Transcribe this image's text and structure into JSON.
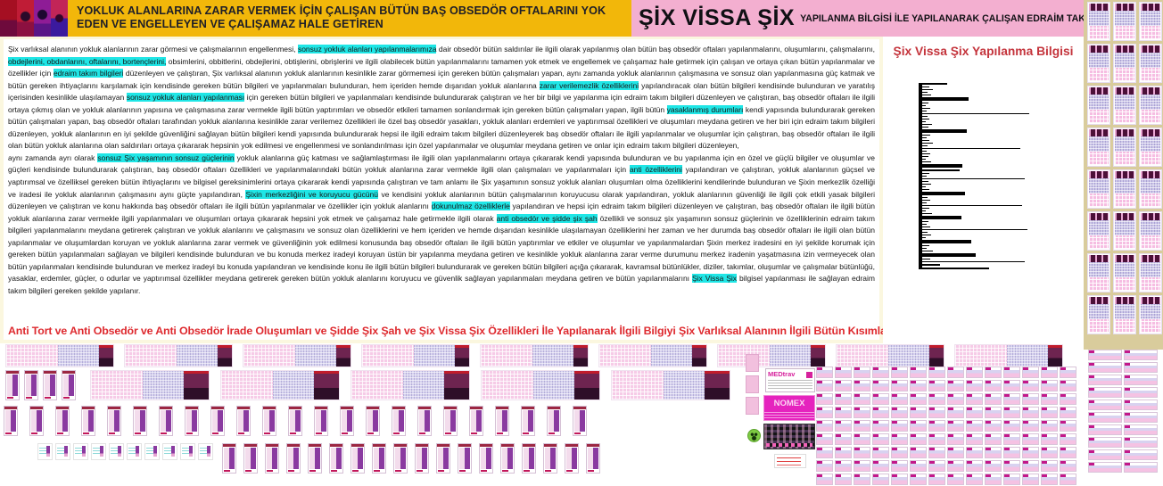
{
  "header": {
    "gold_title": "YOKLUK ALANLARINA ZARAR VERMEK İÇİN ÇALIŞAN BÜTÜN BAŞ OBSEDÖR OFTALARINI YOK EDEN VE ENGELLEYEN VE ÇALIŞAMAZ HALE GETİREN",
    "brand_big": "ŞİX VİSSA ŞİX",
    "brand_small": "YAPILANMA BİLGİSİ İLE YAPILANARAK ÇALIŞAN EDRAİM TAKIM BİLGİLERİ"
  },
  "colors": {
    "gold": "#F2B70A",
    "pink_header": "#F3AFD0",
    "highlight_cyan": "#1FE6E6",
    "red_text": "#DE2A2F",
    "panel_title_red": "#C4343C",
    "tan_column": "#D9CC9C"
  },
  "body": {
    "paragraphs": [
      [
        {
          "t": "Şix varlıksal alanının yokluk alanlarının zarar görmesi ve çalışmalarının engellenmesi, ",
          "h": false
        },
        {
          "t": "sonsuz yokluk alanları yapılanmalarımıza",
          "h": true
        },
        {
          "t": " dair obsedör bütün saldırılar ile ilgili olarak yapılanmış olan bütün baş obsedör oftaları yapılanmalarını, oluşumlarını, çalışmalarını, ",
          "h": false
        },
        {
          "t": "obdejlerini, obdanlarını, oftalarını, bortençlerini,",
          "h": true
        },
        {
          "t": " obsimlerini, obbitlerini, obdejlerini, obtişlerini, obrişlerini ve ilgili olabilecek bütün yapılanmalarını tamamen yok etmek ve engellemek ve çalışamaz hale getirmek için çalışan ve ortaya çıkan bütün yapılanmalar ve özellikler için ",
          "h": false
        },
        {
          "t": "edraim takım bilgileri",
          "h": true
        },
        {
          "t": " düzenleyen ve çalıştıran, Şix varlıksal alanının yokluk alanlarının kesinlikle zarar görmemesi için gereken bütün çalışmaları yapan, aynı zamanda yokluk alanlarının çalışmasına ve sonsuz olan yapılanmasına güç katmak ve bütün gereken ihtiyaçlarını karşılamak için kendisinde gereken bütün bilgileri ve yapılanmaları bulunduran, hem içeriden hemde dışarıdan yokluk alanlarına ",
          "h": false
        },
        {
          "t": "zarar verilemezlik özelliklerini",
          "h": true
        },
        {
          "t": " yapılandıracak olan bütün bilgileri kendisinde bulunduran ve yaratılış içerisinden kesinlikle ulaşılamayan ",
          "h": false
        },
        {
          "t": "sonsuz yokluk alanları yapılanması",
          "h": true
        },
        {
          "t": " için gereken bütün bilgileri ve yapılanmaları kendisinde bulundurarak çalıştıran ve her bir bilgi ve yapılanma için edraim takım bilgileri düzenleyen ve çalıştıran, baş obsedör oftaları ile ilgili ortaya çıkmış olan ve yokluk alanlarının yapısına ve çalışmasına zarar vermekle ilgili bütün yaptırımları ve obsedör etkileri tamamen sonlandırmak için gereken bütün çalışmaları yapan, ilgili bütün ",
          "h": false
        },
        {
          "t": "yasaklanmış durumları",
          "h": true
        },
        {
          "t": " kendi yapısında bulundurarak gereken bütün çalışmaları yapan, baş obsedör oftaları tarafından yokluk alanlarına kesinlikle zarar verilemez özellikleri ile özel baş obsedör yasakları, yokluk alanları erdemleri ve yaptırımsal özellikleri ve oluşumları meydana getiren ve her biri için edraim takım bilgileri düzenleyen, yokluk alanlarının en iyi şekilde güvenliğini sağlayan bütün bilgileri kendi yapısında bulundurarak hepsi ile ilgili edraim takım bilgileri düzenleyerek baş obsedör oftaları ile ilgili yapılanmalar ve oluşumlar için çalıştıran, baş obsedör oftaları ile ilgili olan bütün yokluk alanlarına olan saldırıları ortaya çıkararak hepsinin yok edilmesi ve engellenmesi ve sonlandırılması için özel yapılanmalar ve oluşumlar meydana getiren ve onlar için edraim takım bilgileri düzenleyen,",
          "h": false
        }
      ],
      [
        {
          "t": " aynı zamanda ayrı olarak ",
          "h": false
        },
        {
          "t": "sonsuz Şix yaşamının sonsuz güçlerinin",
          "h": true
        },
        {
          "t": " yokluk alanlarına güç katması ve sağlamlaştırması ile ilgili olan yapılanmalarını ortaya çıkararak kendi yapısında bulunduran ve bu yapılanma için en özel ve güçlü bilgiler ve oluşumlar ve güçleri kendisinde bulundurarak çalıştıran, baş obsedör oftaları özellikleri ve yapılanmalarındaki bütün yokluk alanlarına zarar vermekle ilgili olan çalışmaları ve yapılanmaları için ",
          "h": false
        },
        {
          "t": "anti özelliklerini",
          "h": true
        },
        {
          "t": " yapılandıran ve çalıştıran, yokluk alanlarının güçsel ve yaptırımsal ve özelliksel gereken bütün ihtiyaçlarını ve bilgisel gereksinimlerini ortaya çıkararak kendi yapısında çalıştıran ve tam anlamı ile Şix yaşamının sonsuz yokluk alanları oluşumları olma özelliklerini kendilerinde bulunduran ve Şixin merkezlik özelliği ve iradesi ile yokluk alanlarının çalışmasını aynı güçte yapılandıran, ",
          "h": false
        },
        {
          "t": "Şixin merkezliğini ve koruyucu gücünü",
          "h": true
        },
        {
          "t": " ve kendisini yokluk alanlarının bütün çalışmalarının koruyucusu olarak yapılandıran, yokluk alanlarının  güvenliği ile ilgili çok etkili yasak bilgileri düzenleyen ve çalıştıran ve konu hakkında baş obsedör oftaları ile ilgili bütün yapılanmalar ve özellikler için yokluk alanlarını ",
          "h": false
        },
        {
          "t": "dokunulmaz özelliklerle",
          "h": true
        },
        {
          "t": " yapılandıran ve hepsi için edraim takım bilgileri düzenleyen ve çalıştıran, baş obsedör oftaları ile ilgili bütün yokluk alanlarına zarar vermekle ilgili yapılanmaları ve oluşumları ortaya  çıkararak hepsini yok etmek ve çalışamaz hale getirmekle ilgili olarak ",
          "h": false
        },
        {
          "t": "anti obsedör ve şidde şix şah",
          "h": true
        },
        {
          "t": " özellikli ve sonsuz şix yaşamının sonsuz güçlerinin ve özelliklerinin edraim takım bilgileri yapılanmalarını meydana getirerek çalıştıran ve yokluk alanlarını ve çalışmasını ve sonsuz olan özelliklerini ve hem içeriden ve hemde dışarıdan kesinlikle ulaşılamayan özelliklerini her zaman ve her durumda baş obsedör oftaları ile ilgili olan bütün yapılanmalar ve oluşumlardan  koruyan ve yokluk alanlarına zarar vermek ve güvenliğinin yok edilmesi konusunda baş obsedör oftaları ile ilgili bütün yaptırımlar ve etkiler ve oluşumlar ve yapılanmalardan Şixin merkez iradesini en iyi şekilde korumak için gereken bütün yapılanmaları sağlayan ve bilgileri kendisinde bulunduran ve bu konuda merkez iradeyi koruyan üstün bir yapılanma meydana getiren ve kesinlikle yokluk alanlarına zarar verme durumunu merkez iradenin yaşatmasına izin vermeyecek olan bütün yapılanmaları kendisinde bulunduran ve merkez iradeyi bu konuda yapılandıran ve kendisinde konu ile ilgili bütün bilgileri bulundurarak ve gereken bütün bilgileri açığa çıkararak, kavramsal bütünlükler, diziler, takımlar, oluşumlar ve çalışmalar bütünlüğü, yasaklar, erdemler, güçler, o odurlar ve yaptırımsal özellikler meydana getirerek gereken bütün yokluk alanlarını koruyucu ve güvenlik sağlayan yapılanmaları meydana getiren ve bütün yapılanmalarını ",
          "h": false
        },
        {
          "t": "Şix Vissa Şix",
          "h": true
        },
        {
          "t": " bilgisel yapılanması ile sağlayan edraim takım bilgileri gereken şekilde yapılanır.",
          "h": false
        }
      ]
    ],
    "red_line": "Anti Tort ve Anti Obsedör ve Anti Obsedör İrade Oluşumları ve Şidde Şix Şah ve Şix Vissa Şix Özellikleri İle Yapılanarak İlgili Bilgiyi Şix Varlıksal Alanının İlgili Bütün Kısımlarında Uygulatan Edraim Takım Bilgileri Yapılanması"
  },
  "panel": {
    "title": "Şix Vissa Şix Yapılanma Bilgisi",
    "bars": [
      [
        28,
        2
      ],
      [
        8,
        1
      ],
      [
        12,
        1
      ],
      [
        6,
        1
      ],
      [
        10,
        1
      ],
      [
        52,
        3
      ],
      [
        7,
        1
      ],
      [
        4,
        1
      ],
      [
        9,
        1
      ],
      [
        5,
        1
      ],
      [
        120,
        1
      ],
      [
        6,
        1
      ],
      [
        8,
        1
      ],
      [
        4,
        1
      ],
      [
        11,
        1
      ],
      [
        7,
        1
      ],
      [
        50,
        3
      ],
      [
        9,
        1
      ],
      [
        5,
        1
      ],
      [
        8,
        1
      ],
      [
        12,
        1
      ],
      [
        6,
        1
      ],
      [
        110,
        1
      ],
      [
        5,
        1
      ],
      [
        9,
        1
      ],
      [
        7,
        1
      ],
      [
        4,
        1
      ],
      [
        10,
        1
      ],
      [
        45,
        3
      ],
      [
        42,
        2
      ],
      [
        8,
        1
      ],
      [
        5,
        1
      ],
      [
        115,
        1
      ],
      [
        7,
        1
      ],
      [
        10,
        1
      ],
      [
        4,
        1
      ],
      [
        8,
        1
      ],
      [
        48,
        3
      ],
      [
        6,
        1
      ],
      [
        9,
        1
      ],
      [
        5,
        1
      ],
      [
        112,
        1
      ],
      [
        8,
        1
      ],
      [
        4,
        1
      ],
      [
        11,
        1
      ],
      [
        44,
        3
      ],
      [
        7,
        1
      ],
      [
        5,
        1
      ],
      [
        9,
        1
      ],
      [
        118,
        1
      ],
      [
        6,
        1
      ],
      [
        10,
        1
      ],
      [
        4,
        1
      ],
      [
        55,
        3
      ],
      [
        8,
        1
      ],
      [
        5,
        1
      ],
      [
        12,
        1
      ],
      [
        60,
        3
      ],
      [
        9,
        1
      ],
      [
        115,
        1
      ],
      [
        20,
        2
      ],
      [
        75,
        2
      ]
    ]
  },
  "banners": {
    "medtrav_label": "MEDtrav",
    "nomex_label": "NOMEX"
  },
  "bottom": {
    "counts": {
      "row_a_cards": 9,
      "row_b_thumbs": 4,
      "row_b_cards": 5,
      "row_c_thumbs": 23,
      "row_d_clips": 10,
      "row_d_thumbs": 18,
      "right_top_cards": 24,
      "right_bottom_cards": 20,
      "mini_grid_cards": 126,
      "sliver_cards": 3
    }
  }
}
